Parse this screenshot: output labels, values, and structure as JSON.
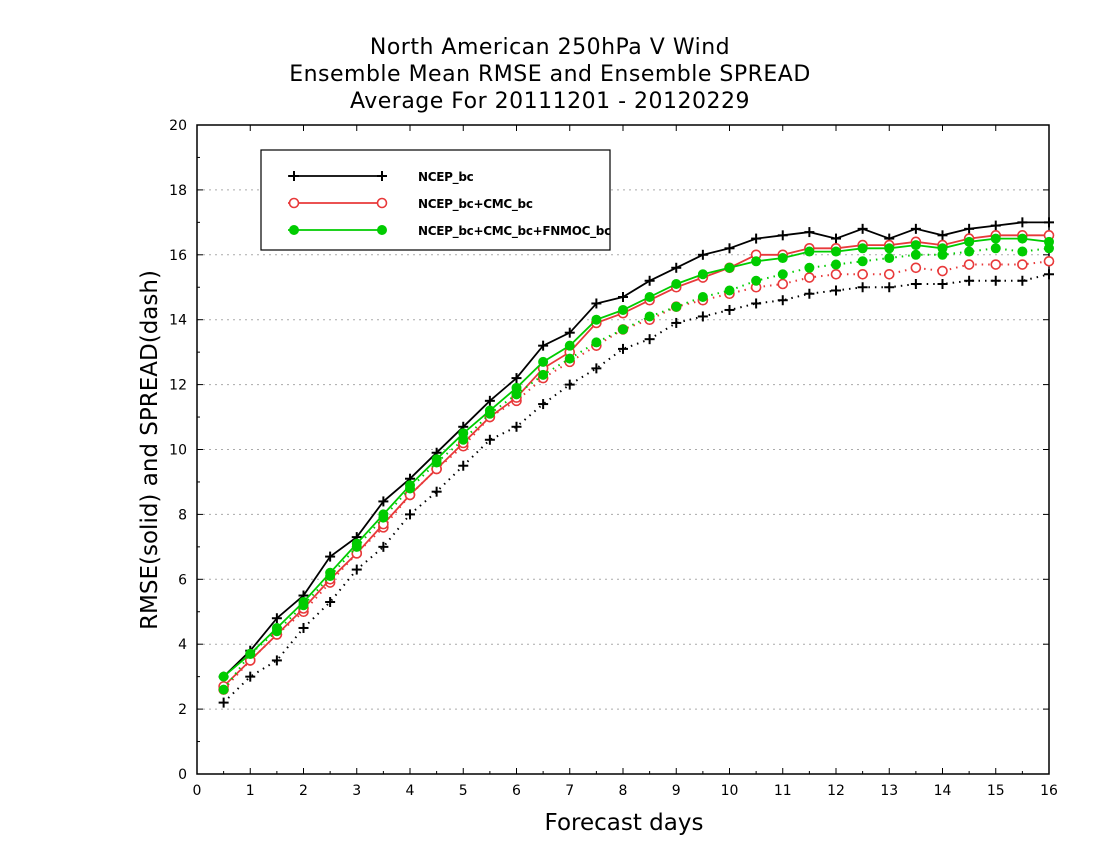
{
  "chart_data": {
    "type": "line",
    "title_lines": [
      "North American 250hPa V Wind",
      "Ensemble Mean RMSE and Ensemble SPREAD",
      "Average For 20111201 - 20120229"
    ],
    "xlabel": "Forecast days",
    "ylabel": "RMSE(solid) and SPREAD(dash)",
    "xlim": [
      0,
      16
    ],
    "ylim": [
      0,
      20
    ],
    "x_ticks": [
      "0",
      "1",
      "2",
      "3",
      "4",
      "5",
      "6",
      "7",
      "8",
      "9",
      "10",
      "11",
      "12",
      "13",
      "14",
      "15",
      "16"
    ],
    "y_ticks": [
      "0",
      "2",
      "4",
      "6",
      "8",
      "10",
      "12",
      "14",
      "16",
      "18",
      "20"
    ],
    "grid": "horizontal-dotted",
    "legend_position": "top-left",
    "x": [
      0.5,
      1,
      1.5,
      2,
      2.5,
      3,
      3.5,
      4,
      4.5,
      5,
      5.5,
      6,
      6.5,
      7,
      7.5,
      8,
      8.5,
      9,
      9.5,
      10,
      10.5,
      11,
      11.5,
      12,
      12.5,
      13,
      13.5,
      14,
      14.5,
      15,
      15.5,
      16
    ],
    "series": [
      {
        "name": "NCEP_bc",
        "color": "#000000",
        "marker": "plus",
        "rmse": [
          3.0,
          3.8,
          4.8,
          5.5,
          6.7,
          7.3,
          8.4,
          9.1,
          9.9,
          10.7,
          11.5,
          12.2,
          13.2,
          13.6,
          14.5,
          14.7,
          15.2,
          15.6,
          16.0,
          16.2,
          16.5,
          16.6,
          16.7,
          16.5,
          16.8,
          16.5,
          16.8,
          16.6,
          16.8,
          16.9,
          17.0,
          17.0
        ],
        "spread": [
          2.2,
          3.0,
          3.5,
          4.5,
          5.3,
          6.3,
          7.0,
          8.0,
          8.7,
          9.5,
          10.3,
          10.7,
          11.4,
          12.0,
          12.5,
          13.1,
          13.4,
          13.9,
          14.1,
          14.3,
          14.5,
          14.6,
          14.8,
          14.9,
          15.0,
          15.0,
          15.1,
          15.1,
          15.2,
          15.2,
          15.2,
          15.4
        ]
      },
      {
        "name": "NCEP_bc+CMC_bc",
        "color": "#e8393a",
        "marker": "open-circle",
        "rmse": [
          2.7,
          3.5,
          4.3,
          5.1,
          6.0,
          6.8,
          7.7,
          8.6,
          9.4,
          10.2,
          11.0,
          11.6,
          12.5,
          13.0,
          13.9,
          14.2,
          14.6,
          15.0,
          15.3,
          15.6,
          16.0,
          16.0,
          16.2,
          16.2,
          16.3,
          16.3,
          16.4,
          16.3,
          16.5,
          16.6,
          16.6,
          16.6
        ],
        "spread": [
          2.6,
          3.5,
          4.3,
          5.0,
          5.9,
          6.8,
          7.6,
          8.6,
          9.4,
          10.1,
          11.0,
          11.5,
          12.2,
          12.7,
          13.2,
          13.7,
          14.0,
          14.4,
          14.6,
          14.8,
          15.0,
          15.1,
          15.3,
          15.4,
          15.4,
          15.4,
          15.6,
          15.5,
          15.7,
          15.7,
          15.7,
          15.8
        ]
      },
      {
        "name": "NCEP_bc+CMC_bc+FNMOC_bc",
        "color": "#00cc00",
        "marker": "filled-circle",
        "rmse": [
          3.0,
          3.7,
          4.5,
          5.3,
          6.2,
          7.1,
          8.0,
          8.9,
          9.7,
          10.5,
          11.2,
          11.9,
          12.7,
          13.2,
          14.0,
          14.3,
          14.7,
          15.1,
          15.4,
          15.6,
          15.8,
          15.9,
          16.1,
          16.1,
          16.2,
          16.2,
          16.3,
          16.2,
          16.4,
          16.5,
          16.5,
          16.4
        ],
        "spread": [
          2.6,
          3.7,
          4.4,
          5.2,
          6.1,
          7.0,
          7.9,
          8.8,
          9.6,
          10.3,
          11.1,
          11.7,
          12.3,
          12.8,
          13.3,
          13.7,
          14.1,
          14.4,
          14.7,
          14.9,
          15.2,
          15.4,
          15.6,
          15.7,
          15.8,
          15.9,
          16.0,
          16.0,
          16.1,
          16.2,
          16.1,
          16.2
        ]
      }
    ]
  }
}
